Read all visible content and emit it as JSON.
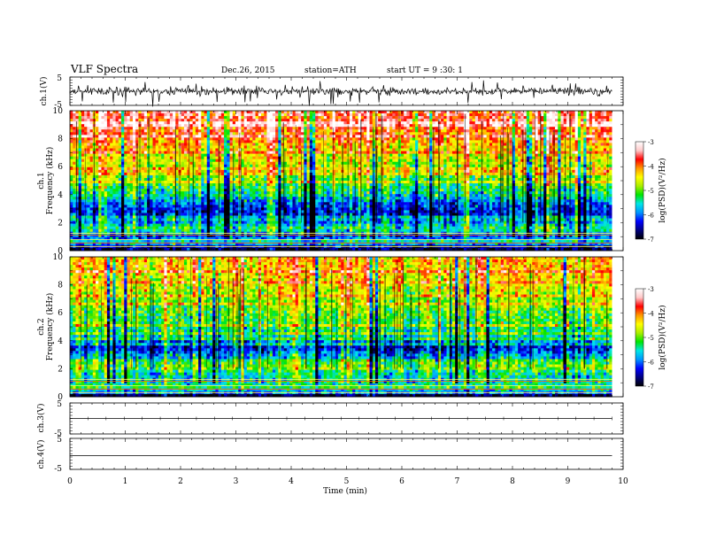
{
  "header": {
    "title": "VLF Spectra",
    "date": "Dec.26, 2015",
    "station": "station=ATH",
    "start": "start UT =  9 :30: 1"
  },
  "chart_data": {
    "type": "heatmap",
    "xlabel": "Time (min)",
    "xlim": [
      0,
      10
    ],
    "xticks": [
      "0",
      "1",
      "2",
      "3",
      "4",
      "5",
      "6",
      "7",
      "8",
      "9",
      "10"
    ],
    "data_end_min": 9.8,
    "panels": [
      {
        "id": "ch1-voltage",
        "ylabel": "ch.1(V)",
        "ylim": [
          -5,
          5
        ],
        "yticks": [
          "5",
          "-5"
        ],
        "type": "line",
        "signal": "broadband noise about 0 V, amplitude ~1-2 V with spikes"
      },
      {
        "id": "ch1-spectrogram",
        "ylabel_top": "ch.1",
        "ylabel": "Frequency (kHz)",
        "ylim": [
          0,
          10
        ],
        "yticks": [
          "0",
          "2",
          "4",
          "6",
          "8",
          "10"
        ],
        "type": "heatmap",
        "description_profile": [
          [
            0.2,
            -6.8
          ],
          [
            0.6,
            -5.4
          ],
          [
            1.0,
            -6.2
          ],
          [
            1.6,
            -5.2
          ],
          [
            2.2,
            -6.1
          ],
          [
            2.8,
            -6.3
          ],
          [
            3.4,
            -6.0
          ],
          [
            4.0,
            -5.4
          ],
          [
            5.0,
            -5.0
          ],
          [
            6.0,
            -4.7
          ],
          [
            7.0,
            -4.4
          ],
          [
            8.0,
            -4.0
          ],
          [
            9.0,
            -3.7
          ],
          [
            10.0,
            -3.5
          ]
        ]
      },
      {
        "id": "ch2-spectrogram",
        "ylabel_top": "ch.2",
        "ylabel": "Frequency (kHz)",
        "ylim": [
          0,
          10
        ],
        "yticks": [
          "0",
          "2",
          "4",
          "6",
          "8",
          "10"
        ],
        "type": "heatmap",
        "description_profile": [
          [
            0.2,
            -6.8
          ],
          [
            0.6,
            -5.2
          ],
          [
            1.2,
            -5.6
          ],
          [
            1.8,
            -5.3
          ],
          [
            2.4,
            -5.6
          ],
          [
            3.0,
            -5.8
          ],
          [
            3.5,
            -6.4
          ],
          [
            4.2,
            -5.6
          ],
          [
            5.0,
            -5.2
          ],
          [
            6.0,
            -5.0
          ],
          [
            7.0,
            -4.8
          ],
          [
            8.0,
            -4.5
          ],
          [
            9.0,
            -4.3
          ],
          [
            10.0,
            -4.2
          ]
        ]
      },
      {
        "id": "ch3-voltage",
        "ylabel": "ch.3(V)",
        "ylim": [
          -5,
          5
        ],
        "yticks": [
          "5",
          "-5"
        ],
        "type": "line",
        "signal": "flat near 0 V with periodic small ticks"
      },
      {
        "id": "ch4-voltage",
        "ylabel": "ch.4(V)",
        "ylim": [
          -5,
          5
        ],
        "yticks": [
          "5",
          "-5"
        ],
        "type": "line",
        "signal": "flat near 0 V"
      }
    ],
    "colorbars": [
      {
        "label": "log(PSD)(V²/Hz)",
        "range": [
          -7,
          -3
        ],
        "ticks": [
          "-3",
          "-4",
          "-5",
          "-6",
          "-7"
        ]
      },
      {
        "label": "log(PSD)(V²/Hz)",
        "range": [
          -7,
          -3
        ],
        "ticks": [
          "-3",
          "-4",
          "-5",
          "-6",
          "-7"
        ]
      }
    ],
    "colormap": [
      "#000000",
      "#000080",
      "#0000ff",
      "#0096ff",
      "#00e6e6",
      "#00e600",
      "#aaee00",
      "#ffff00",
      "#ff9900",
      "#ff0000",
      "#ffc8c8",
      "#ffffff"
    ]
  }
}
